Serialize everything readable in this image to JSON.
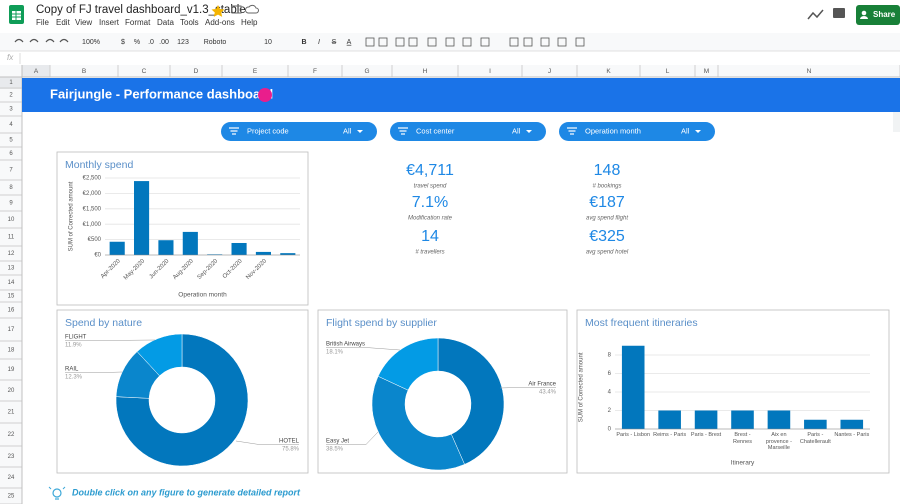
{
  "app": {
    "title": "Copy of FJ travel dashboard_v1.3_stable",
    "menu": [
      "File",
      "Edit",
      "View",
      "Insert",
      "Format",
      "Data",
      "Tools",
      "Add-ons",
      "Help"
    ],
    "share": "Share",
    "toolbar": [
      "100%",
      "$",
      "%",
      ".0",
      ".00",
      "123",
      "Roboto",
      "10",
      "B",
      "I",
      "S",
      "A"
    ],
    "formula_label": "fx",
    "columns": [
      "A",
      "B",
      "C",
      "D",
      "E",
      "F",
      "G",
      "H",
      "I",
      "J",
      "K",
      "L",
      "M",
      "N"
    ],
    "rows": [
      1,
      2,
      3,
      4,
      5,
      6,
      7,
      8,
      9,
      10,
      11,
      12,
      13,
      14,
      15,
      16,
      17,
      18,
      19,
      20,
      21,
      22,
      23,
      24,
      25
    ]
  },
  "dashboard": {
    "title": "Fairjungle - Performance dashboard",
    "filters": [
      {
        "label": "Project code",
        "value": "All"
      },
      {
        "label": "Cost center",
        "value": "All"
      },
      {
        "label": "Operation month",
        "value": "All"
      }
    ],
    "kpis": [
      {
        "value": "€4,711",
        "label": "travel spend"
      },
      {
        "value": "7.1%",
        "label": "Modification rate"
      },
      {
        "value": "14",
        "label": "# travellers"
      },
      {
        "value": "148",
        "label": "# bookings"
      },
      {
        "value": "€187",
        "label": "avg spend flight"
      },
      {
        "value": "€325",
        "label": "avg spend hotel"
      }
    ],
    "footer": "Double click on any figure to generate detailed report"
  },
  "chart_data": [
    {
      "type": "bar",
      "title": "Monthly spend",
      "categories": [
        "Apr-2020",
        "May-2020",
        "Jun-2020",
        "Aug-2020",
        "Sep-2020",
        "Oct-2020",
        "Nov-2020",
        null
      ],
      "values": [
        430,
        2400,
        480,
        750,
        20,
        390,
        100,
        60
      ],
      "color": "#0277bd",
      "ylim": [
        0,
        2500
      ],
      "yticks": [
        {
          "value": 0,
          "label": "€0"
        },
        {
          "value": 500,
          "label": "€500"
        },
        {
          "value": 1000,
          "label": "€1,000"
        },
        {
          "value": 1500,
          "label": "€1,500"
        },
        {
          "value": 2000,
          "label": "€2,000"
        },
        {
          "value": 2500,
          "label": "€2,500"
        }
      ],
      "ylabel": "SUM of Corrected amount",
      "xlabel": "Operation month",
      "grid": true
    },
    {
      "type": "donut",
      "title": "Spend by nature",
      "categories": [
        "HOTEL",
        "RAIL",
        "FLIGHT"
      ],
      "values": [
        75.8,
        12.3,
        11.9
      ],
      "value_labels": [
        "75.8%",
        "12.3%",
        "11.9%"
      ],
      "colors": [
        "#0277bd",
        "#0a86cc",
        "#039be5"
      ]
    },
    {
      "type": "donut",
      "title": "Flight spend by supplier",
      "categories": [
        "Air France",
        "Easy Jet",
        "British Airways"
      ],
      "values": [
        43.4,
        38.5,
        18.1
      ],
      "value_labels": [
        "43.4%",
        "38.5%",
        "18.1%"
      ],
      "colors": [
        "#0277bd",
        "#0a86cc",
        "#039be5"
      ]
    },
    {
      "type": "bar",
      "title": "Most frequent itineraries",
      "categories": [
        "Paris - Lisbon",
        "Reims - Paris",
        "Paris - Brest",
        "Brest - Rennes",
        "Aix en provence - Marseille",
        "Paris - Chatellerault",
        "Nantes - Paris"
      ],
      "values": [
        9,
        2,
        2,
        2,
        2,
        1,
        1
      ],
      "color": "#0277bd",
      "ylim": [
        0,
        9
      ],
      "yticks": [
        0,
        2,
        4,
        6,
        8
      ],
      "ylabel": "SUM of Corrected amount",
      "xlabel": "Itinerary",
      "grid": true
    }
  ]
}
